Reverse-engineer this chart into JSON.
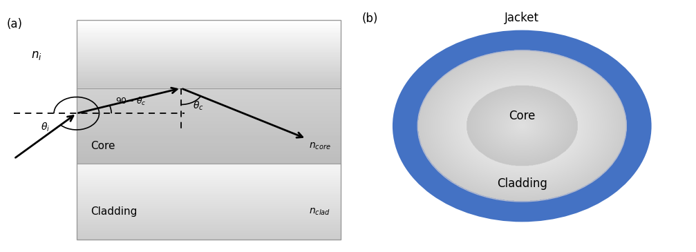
{
  "fig_width": 10.07,
  "fig_height": 3.65,
  "dpi": 100,
  "label_a": "(a)",
  "label_b": "(b)",
  "label_ni": "$n_i$",
  "label_ncore": "$n_{core}$",
  "label_nclad": "$n_{clad}$",
  "label_core": "Core",
  "label_cladding": "Cladding",
  "label_jacket": "Jacket",
  "label_theta_i": "$\\theta_i$",
  "label_90_theta_c": "90 – $\\theta_c$",
  "label_theta_c": "$\\theta_c$",
  "bg_white": "#ffffff",
  "jacket_color": "#4472c4"
}
